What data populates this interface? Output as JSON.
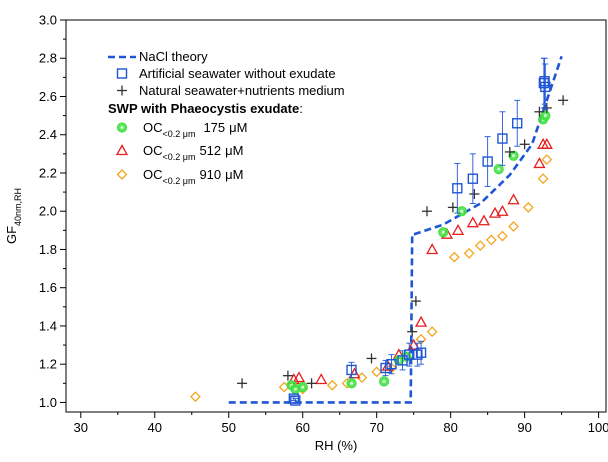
{
  "chart_data": {
    "type": "scatter",
    "xlabel": "RH (%)",
    "ylabel_main": "GF",
    "ylabel_sub": "40nm,RH",
    "xlim": [
      28,
      101
    ],
    "ylim": [
      0.95,
      3.0
    ],
    "xticks": [
      30,
      40,
      50,
      60,
      70,
      80,
      90,
      100
    ],
    "yticks": [
      1.0,
      1.2,
      1.4,
      1.6,
      1.8,
      2.0,
      2.2,
      2.4,
      2.6,
      2.8,
      3.0
    ],
    "ytick_labels": [
      "1.0",
      "1.2",
      "1.4",
      "1.6",
      "1.8",
      "2.0",
      "2.2",
      "2.4",
      "2.6",
      "2.8",
      "3.0"
    ],
    "legend_heading": "SWP with Phaeocystis exudate",
    "legend_heading_suffix": ":",
    "series": [
      {
        "name": "NaCl theory",
        "marker": "dashed-line",
        "color": "#1f56d6",
        "x": [
          50,
          74.6,
          74.8,
          75.1,
          79,
          84,
          88,
          91,
          93,
          95
        ],
        "y": [
          1.0,
          1.0,
          1.88,
          1.88,
          1.93,
          2.04,
          2.19,
          2.35,
          2.58,
          2.81
        ]
      },
      {
        "name": "Artificial seawater without exudate",
        "marker": "square",
        "color": "#1f56d6",
        "x": [
          58.8,
          59.0,
          66.6,
          71.2,
          72.0,
          73.5,
          74.4,
          75.5,
          76.0,
          80.9,
          83.0,
          85.0,
          87.0,
          89.0,
          92.6,
          92.7,
          92.8
        ],
        "y": [
          1.02,
          1.01,
          1.17,
          1.18,
          1.2,
          1.22,
          1.25,
          1.25,
          1.26,
          2.12,
          2.17,
          2.26,
          2.38,
          2.46,
          2.67,
          2.68,
          2.65
        ],
        "yerr": [
          0.01,
          0.01,
          0.04,
          0.04,
          0.05,
          0.05,
          0.06,
          0.06,
          0.06,
          0.13,
          0.13,
          0.13,
          0.14,
          0.12,
          0.13,
          0.12,
          0.12
        ]
      },
      {
        "name": "Natural seawater+nutrients medium",
        "marker": "plus",
        "color": "#333333",
        "x": [
          51.8,
          58.0,
          61.2,
          69.3,
          74.8,
          75.3,
          76.8,
          80.3,
          83.2,
          88.0,
          90.0,
          92.0,
          93.0,
          95.2
        ],
        "y": [
          1.1,
          1.14,
          1.1,
          1.23,
          1.37,
          1.53,
          2.0,
          2.02,
          2.09,
          2.31,
          2.35,
          2.52,
          2.54,
          2.58
        ]
      },
      {
        "name": "175",
        "label_prefix": "OC",
        "label_sub": "<0.2 μm",
        "label_unit": "μM",
        "marker": "circle",
        "color": "#3fe03f",
        "x": [
          58.5,
          59.0,
          60.0,
          66.6,
          71.0,
          73.0,
          74.0,
          79.0,
          81.5,
          86.5,
          88.5,
          92.5,
          92.8
        ],
        "y": [
          1.09,
          1.07,
          1.08,
          1.1,
          1.11,
          1.22,
          1.24,
          1.89,
          2.0,
          2.22,
          2.29,
          2.48,
          2.5
        ]
      },
      {
        "name": "512",
        "label_prefix": "OC",
        "label_sub": "<0.2 μm",
        "label_unit": "μM",
        "marker": "triangle",
        "color": "#e81d1d",
        "x": [
          58.8,
          59.5,
          62.5,
          67.0,
          71.5,
          73.0,
          75.0,
          76.0,
          77.5,
          79.5,
          81.0,
          83.0,
          84.5,
          86.0,
          87.0,
          88.5,
          92.0,
          92.5,
          93.0
        ],
        "y": [
          1.12,
          1.13,
          1.12,
          1.15,
          1.19,
          1.25,
          1.3,
          1.42,
          1.8,
          1.88,
          1.9,
          1.94,
          1.95,
          1.99,
          2.0,
          2.06,
          2.25,
          2.35,
          2.35
        ]
      },
      {
        "name": "910",
        "label_prefix": "OC",
        "label_sub": "<0.2 μm",
        "label_unit": "μM",
        "marker": "diamond",
        "color": "#f2a71e",
        "x": [
          45.5,
          57.5,
          60.0,
          64.0,
          66.0,
          68.0,
          70.0,
          72.0,
          74.0,
          76.0,
          77.5,
          80.5,
          82.5,
          84.0,
          85.5,
          87.0,
          88.5,
          90.5,
          92.5,
          93.0
        ],
        "y": [
          1.03,
          1.08,
          1.07,
          1.09,
          1.1,
          1.13,
          1.16,
          1.18,
          1.24,
          1.33,
          1.37,
          1.76,
          1.78,
          1.82,
          1.85,
          1.87,
          1.92,
          2.02,
          2.17,
          2.27
        ]
      }
    ]
  }
}
